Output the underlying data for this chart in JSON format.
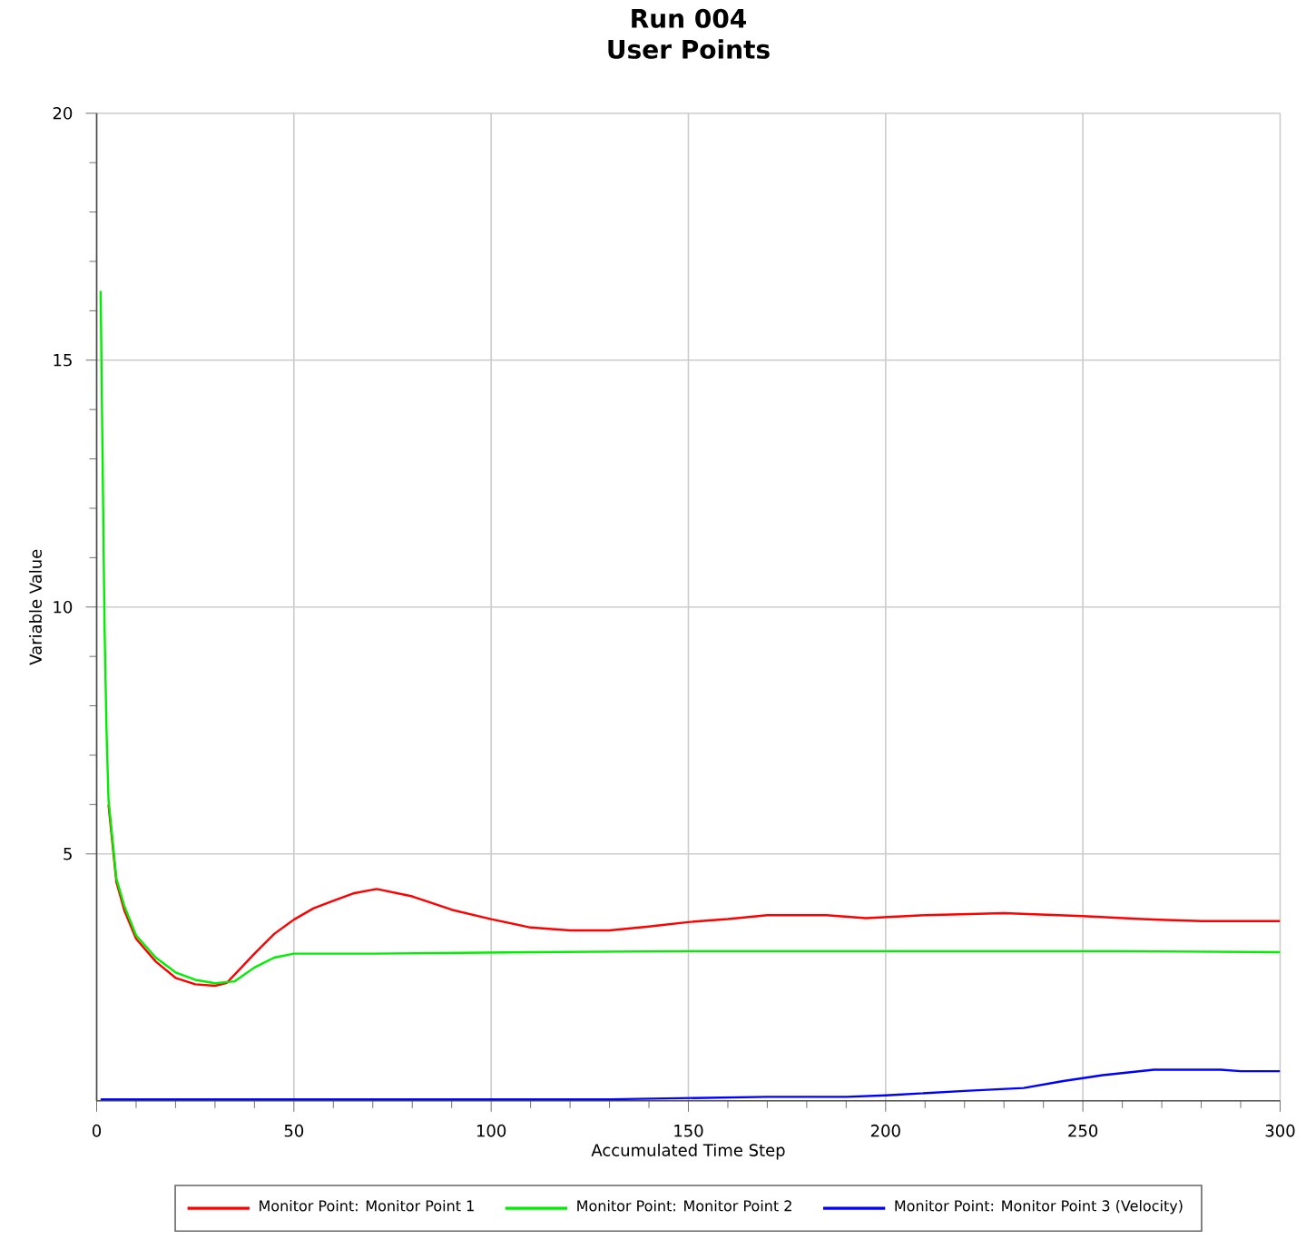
{
  "chart_data": {
    "type": "line",
    "title": "Run 004",
    "subtitle": "User Points",
    "xlabel": "Accumulated Time Step",
    "ylabel": "Variable Value",
    "xlim": [
      0,
      300
    ],
    "ylim": [
      0,
      20
    ],
    "xticks": [
      0,
      50,
      100,
      150,
      200,
      250,
      300
    ],
    "yticks": [
      5,
      10,
      15,
      20
    ],
    "grid": true,
    "legend": "bottom",
    "marker": "none",
    "line_style": "solid",
    "series": [
      {
        "name": "Monitor Point: Monitor Point 1",
        "color": "#ff0000",
        "x": [
          3,
          5,
          7,
          10,
          15,
          20,
          25,
          30,
          33,
          40,
          45,
          50,
          55,
          60,
          65,
          71,
          80,
          90,
          100,
          110,
          120,
          130,
          140,
          150,
          160,
          170,
          185,
          195,
          210,
          230,
          250,
          265,
          280,
          300
        ],
        "values": [
          6.0,
          4.43,
          3.86,
          3.28,
          2.82,
          2.49,
          2.36,
          2.33,
          2.39,
          2.98,
          3.38,
          3.67,
          3.9,
          4.05,
          4.2,
          4.29,
          4.14,
          3.87,
          3.68,
          3.51,
          3.45,
          3.45,
          3.53,
          3.62,
          3.68,
          3.76,
          3.76,
          3.7,
          3.76,
          3.8,
          3.74,
          3.68,
          3.64,
          3.64
        ]
      },
      {
        "name": "Monitor Point: Monitor Point 2",
        "color": "#00ee00",
        "x": [
          1,
          1.5,
          2,
          2.5,
          3,
          5,
          7,
          10,
          15,
          20,
          25,
          30,
          35,
          40,
          45,
          50,
          70,
          110,
          150,
          205,
          260,
          300
        ],
        "values": [
          16.4,
          13.0,
          9.6,
          7.5,
          6.1,
          4.5,
          3.95,
          3.35,
          2.9,
          2.6,
          2.45,
          2.38,
          2.42,
          2.7,
          2.9,
          2.98,
          2.98,
          3.01,
          3.03,
          3.03,
          3.03,
          3.01
        ]
      },
      {
        "name": "Monitor Point: Monitor Point 3 (Velocity)",
        "color": "#0000ff",
        "x": [
          1,
          130,
          170,
          190,
          200,
          220,
          235,
          245,
          255,
          268,
          285,
          290,
          300
        ],
        "values": [
          0.03,
          0.03,
          0.08,
          0.08,
          0.11,
          0.2,
          0.26,
          0.4,
          0.52,
          0.63,
          0.63,
          0.6,
          0.6
        ]
      }
    ]
  }
}
